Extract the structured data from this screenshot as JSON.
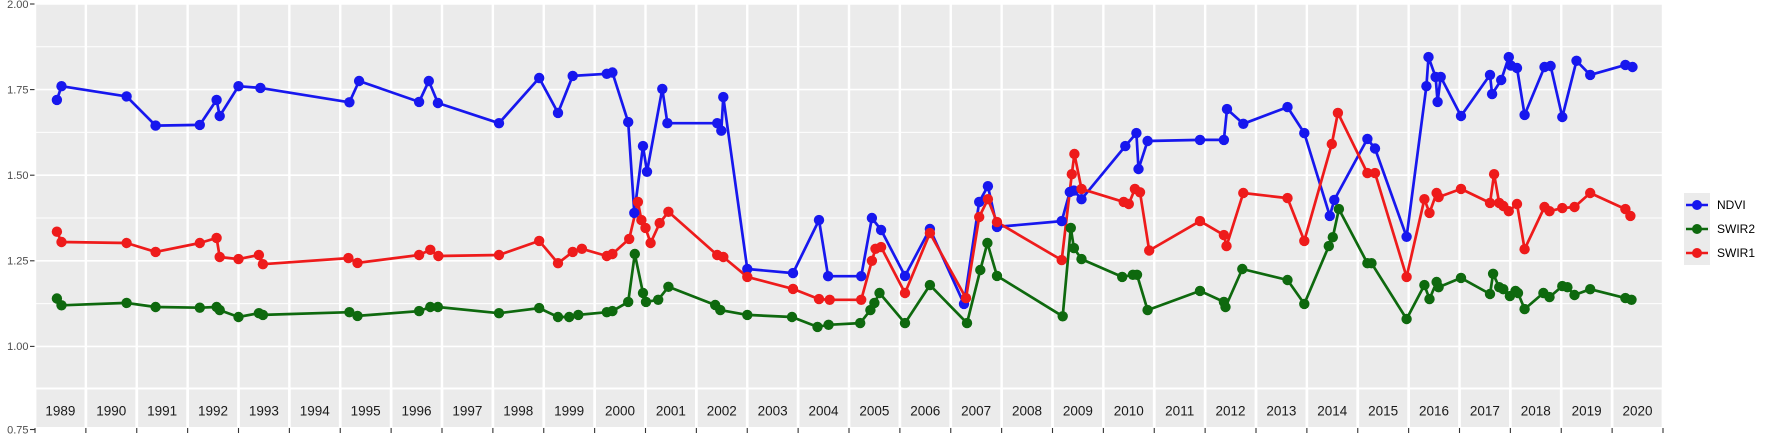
{
  "chart_data": {
    "type": "line",
    "title": "",
    "xlabel": "",
    "ylabel": "",
    "ylim": [
      0.75,
      2.0
    ],
    "xlim": [
      1988.5,
      2020.5
    ],
    "grid": "on",
    "legend_position": "right",
    "panel_background": "#EBEBEB",
    "grid_color": "#FFFFFF",
    "axis_text_color": "#4D4D4D",
    "strip_text_color": "#1A1A1A",
    "y_ticks": [
      {
        "value": 2.0,
        "label": "2.00"
      },
      {
        "value": 1.75,
        "label": "1.75"
      },
      {
        "value": 1.5,
        "label": "1.50"
      },
      {
        "value": 1.25,
        "label": "1.25"
      },
      {
        "value": 1.0,
        "label": "1.00"
      },
      {
        "value": 0.75,
        "label": "0.75"
      }
    ],
    "x_years": [
      1989,
      1990,
      1991,
      1992,
      1993,
      1994,
      1995,
      1996,
      1997,
      1998,
      1999,
      2000,
      2001,
      2002,
      2003,
      2004,
      2005,
      2006,
      2007,
      2008,
      2009,
      2010,
      2011,
      2012,
      2013,
      2014,
      2015,
      2016,
      2017,
      2018,
      2019,
      2020
    ],
    "series": [
      {
        "name": "NDVI",
        "color": "#1717EE",
        "points": [
          [
            1988.93,
            1.72
          ],
          [
            1989.02,
            1.76
          ],
          [
            1990.3,
            1.73
          ],
          [
            1990.87,
            1.645
          ],
          [
            1991.74,
            1.647
          ],
          [
            1992.07,
            1.72
          ],
          [
            1992.13,
            1.673
          ],
          [
            1992.5,
            1.76
          ],
          [
            1992.93,
            1.755
          ],
          [
            1994.68,
            1.713
          ],
          [
            1994.87,
            1.775
          ],
          [
            1996.05,
            1.714
          ],
          [
            1996.24,
            1.775
          ],
          [
            1996.42,
            1.711
          ],
          [
            1997.62,
            1.652
          ],
          [
            1998.41,
            1.784
          ],
          [
            1998.78,
            1.682
          ],
          [
            1999.07,
            1.79
          ],
          [
            1999.74,
            1.796
          ],
          [
            1999.85,
            1.8
          ],
          [
            2000.16,
            1.655
          ],
          [
            2000.28,
            1.39
          ],
          [
            2000.45,
            1.585
          ],
          [
            2000.53,
            1.51
          ],
          [
            2000.83,
            1.752
          ],
          [
            2000.93,
            1.652
          ],
          [
            2001.91,
            1.652
          ],
          [
            2001.99,
            1.63
          ],
          [
            2002.03,
            1.728
          ],
          [
            2002.5,
            1.226
          ],
          [
            2003.4,
            1.214
          ],
          [
            2003.91,
            1.369
          ],
          [
            2004.09,
            1.205
          ],
          [
            2004.74,
            1.205
          ],
          [
            2004.95,
            1.375
          ],
          [
            2005.13,
            1.34
          ],
          [
            2005.6,
            1.206
          ],
          [
            2006.09,
            1.343
          ],
          [
            2006.76,
            1.124
          ],
          [
            2007.06,
            1.422
          ],
          [
            2007.23,
            1.468
          ],
          [
            2007.41,
            1.349
          ],
          [
            2008.68,
            1.366
          ],
          [
            2008.84,
            1.451
          ],
          [
            2008.92,
            1.455
          ],
          [
            2009.07,
            1.43
          ],
          [
            2009.93,
            1.585
          ],
          [
            2010.15,
            1.623
          ],
          [
            2010.19,
            1.518
          ],
          [
            2010.37,
            1.6
          ],
          [
            2011.4,
            1.603
          ],
          [
            2011.87,
            1.603
          ],
          [
            2011.93,
            1.693
          ],
          [
            2012.25,
            1.65
          ],
          [
            2013.12,
            1.699
          ],
          [
            2013.45,
            1.623
          ],
          [
            2013.95,
            1.381
          ],
          [
            2014.04,
            1.428
          ],
          [
            2014.69,
            1.606
          ],
          [
            2014.84,
            1.578
          ],
          [
            2015.46,
            1.32
          ],
          [
            2015.85,
            1.76
          ],
          [
            2015.89,
            1.845
          ],
          [
            2016.03,
            1.787
          ],
          [
            2016.07,
            1.714
          ],
          [
            2016.13,
            1.787
          ],
          [
            2016.53,
            1.673
          ],
          [
            2017.1,
            1.793
          ],
          [
            2017.14,
            1.737
          ],
          [
            2017.32,
            1.778
          ],
          [
            2017.47,
            1.845
          ],
          [
            2017.51,
            1.82
          ],
          [
            2017.63,
            1.813
          ],
          [
            2017.78,
            1.676
          ],
          [
            2018.17,
            1.816
          ],
          [
            2018.29,
            1.819
          ],
          [
            2018.52,
            1.67
          ],
          [
            2018.8,
            1.834
          ],
          [
            2019.07,
            1.793
          ],
          [
            2019.76,
            1.822
          ],
          [
            2019.9,
            1.816
          ]
        ]
      },
      {
        "name": "SWIR2",
        "color": "#0E690E",
        "points": [
          [
            1988.93,
            1.14
          ],
          [
            1989.02,
            1.12
          ],
          [
            1990.3,
            1.127
          ],
          [
            1990.87,
            1.115
          ],
          [
            1991.74,
            1.113
          ],
          [
            1992.07,
            1.115
          ],
          [
            1992.13,
            1.106
          ],
          [
            1992.5,
            1.086
          ],
          [
            1992.9,
            1.097
          ],
          [
            1992.98,
            1.092
          ],
          [
            1994.68,
            1.1
          ],
          [
            1994.84,
            1.089
          ],
          [
            1996.05,
            1.103
          ],
          [
            1996.27,
            1.115
          ],
          [
            1996.42,
            1.115
          ],
          [
            1997.62,
            1.097
          ],
          [
            1998.41,
            1.112
          ],
          [
            1998.78,
            1.086
          ],
          [
            1999.0,
            1.086
          ],
          [
            1999.18,
            1.092
          ],
          [
            1999.74,
            1.1
          ],
          [
            1999.85,
            1.103
          ],
          [
            2000.16,
            1.13
          ],
          [
            2000.29,
            1.27
          ],
          [
            2000.45,
            1.156
          ],
          [
            2000.51,
            1.13
          ],
          [
            2000.75,
            1.136
          ],
          [
            2000.95,
            1.174
          ],
          [
            2001.87,
            1.121
          ],
          [
            2001.97,
            1.106
          ],
          [
            2002.5,
            1.092
          ],
          [
            2003.38,
            1.086
          ],
          [
            2003.88,
            1.057
          ],
          [
            2004.1,
            1.063
          ],
          [
            2004.72,
            1.068
          ],
          [
            2004.92,
            1.106
          ],
          [
            2005.0,
            1.127
          ],
          [
            2005.1,
            1.156
          ],
          [
            2005.6,
            1.068
          ],
          [
            2006.09,
            1.179
          ],
          [
            2006.82,
            1.068
          ],
          [
            2007.08,
            1.223
          ],
          [
            2007.22,
            1.302
          ],
          [
            2007.41,
            1.206
          ],
          [
            2008.7,
            1.088
          ],
          [
            2008.86,
            1.346
          ],
          [
            2008.92,
            1.287
          ],
          [
            2009.07,
            1.255
          ],
          [
            2009.87,
            1.203
          ],
          [
            2010.08,
            1.209
          ],
          [
            2010.16,
            1.209
          ],
          [
            2010.37,
            1.106
          ],
          [
            2011.4,
            1.162
          ],
          [
            2011.87,
            1.13
          ],
          [
            2011.9,
            1.115
          ],
          [
            2012.23,
            1.226
          ],
          [
            2013.12,
            1.194
          ],
          [
            2013.45,
            1.124
          ],
          [
            2013.93,
            1.293
          ],
          [
            2014.01,
            1.319
          ],
          [
            2014.13,
            1.401
          ],
          [
            2014.69,
            1.243
          ],
          [
            2014.77,
            1.243
          ],
          [
            2015.46,
            1.08
          ],
          [
            2015.81,
            1.179
          ],
          [
            2015.91,
            1.138
          ],
          [
            2016.05,
            1.188
          ],
          [
            2016.09,
            1.173
          ],
          [
            2016.53,
            1.2
          ],
          [
            2017.1,
            1.153
          ],
          [
            2017.16,
            1.212
          ],
          [
            2017.28,
            1.173
          ],
          [
            2017.36,
            1.167
          ],
          [
            2017.49,
            1.147
          ],
          [
            2017.6,
            1.162
          ],
          [
            2017.65,
            1.156
          ],
          [
            2017.78,
            1.109
          ],
          [
            2018.15,
            1.156
          ],
          [
            2018.27,
            1.144
          ],
          [
            2018.52,
            1.176
          ],
          [
            2018.62,
            1.173
          ],
          [
            2018.76,
            1.15
          ],
          [
            2019.07,
            1.167
          ],
          [
            2019.76,
            1.141
          ],
          [
            2019.88,
            1.136
          ]
        ]
      },
      {
        "name": "SWIR1",
        "color": "#EE1B1B",
        "points": [
          [
            1988.93,
            1.335
          ],
          [
            1989.02,
            1.305
          ],
          [
            1990.3,
            1.302
          ],
          [
            1990.87,
            1.276
          ],
          [
            1991.74,
            1.302
          ],
          [
            1992.07,
            1.317
          ],
          [
            1992.13,
            1.261
          ],
          [
            1992.5,
            1.255
          ],
          [
            1992.9,
            1.267
          ],
          [
            1992.98,
            1.24
          ],
          [
            1994.66,
            1.258
          ],
          [
            1994.84,
            1.244
          ],
          [
            1996.05,
            1.267
          ],
          [
            1996.27,
            1.282
          ],
          [
            1996.43,
            1.264
          ],
          [
            1997.62,
            1.267
          ],
          [
            1998.41,
            1.308
          ],
          [
            1998.78,
            1.243
          ],
          [
            1999.07,
            1.276
          ],
          [
            1999.25,
            1.285
          ],
          [
            1999.74,
            1.264
          ],
          [
            1999.85,
            1.27
          ],
          [
            2000.18,
            1.314
          ],
          [
            2000.35,
            1.422
          ],
          [
            2000.42,
            1.369
          ],
          [
            2000.5,
            1.346
          ],
          [
            2000.6,
            1.302
          ],
          [
            2000.78,
            1.36
          ],
          [
            2000.95,
            1.393
          ],
          [
            2001.91,
            1.267
          ],
          [
            2002.03,
            1.261
          ],
          [
            2002.5,
            1.203
          ],
          [
            2003.4,
            1.168
          ],
          [
            2003.91,
            1.138
          ],
          [
            2004.12,
            1.136
          ],
          [
            2004.74,
            1.136
          ],
          [
            2004.95,
            1.25
          ],
          [
            2005.02,
            1.285
          ],
          [
            2005.13,
            1.29
          ],
          [
            2005.6,
            1.156
          ],
          [
            2006.09,
            1.331
          ],
          [
            2006.8,
            1.141
          ],
          [
            2007.06,
            1.378
          ],
          [
            2007.23,
            1.43
          ],
          [
            2007.41,
            1.363
          ],
          [
            2008.68,
            1.252
          ],
          [
            2008.88,
            1.503
          ],
          [
            2008.93,
            1.562
          ],
          [
            2009.07,
            1.46
          ],
          [
            2009.9,
            1.422
          ],
          [
            2010.0,
            1.416
          ],
          [
            2010.12,
            1.46
          ],
          [
            2010.22,
            1.45
          ],
          [
            2010.4,
            1.28
          ],
          [
            2011.4,
            1.366
          ],
          [
            2011.87,
            1.325
          ],
          [
            2011.92,
            1.293
          ],
          [
            2012.25,
            1.448
          ],
          [
            2013.12,
            1.433
          ],
          [
            2013.45,
            1.308
          ],
          [
            2013.99,
            1.591
          ],
          [
            2014.11,
            1.682
          ],
          [
            2014.69,
            1.506
          ],
          [
            2014.84,
            1.506
          ],
          [
            2015.46,
            1.203
          ],
          [
            2015.81,
            1.43
          ],
          [
            2015.91,
            1.39
          ],
          [
            2016.05,
            1.448
          ],
          [
            2016.09,
            1.436
          ],
          [
            2016.53,
            1.46
          ],
          [
            2017.1,
            1.419
          ],
          [
            2017.18,
            1.503
          ],
          [
            2017.28,
            1.419
          ],
          [
            2017.36,
            1.41
          ],
          [
            2017.47,
            1.395
          ],
          [
            2017.63,
            1.416
          ],
          [
            2017.78,
            1.284
          ],
          [
            2018.17,
            1.407
          ],
          [
            2018.27,
            1.395
          ],
          [
            2018.52,
            1.404
          ],
          [
            2018.76,
            1.407
          ],
          [
            2019.07,
            1.448
          ],
          [
            2019.76,
            1.401
          ],
          [
            2019.86,
            1.381
          ]
        ]
      }
    ]
  },
  "legend": {
    "items": [
      {
        "label": "NDVI",
        "color": "#1717EE"
      },
      {
        "label": "SWIR2",
        "color": "#0E690E"
      },
      {
        "label": "SWIR1",
        "color": "#EE1B1B"
      }
    ]
  }
}
